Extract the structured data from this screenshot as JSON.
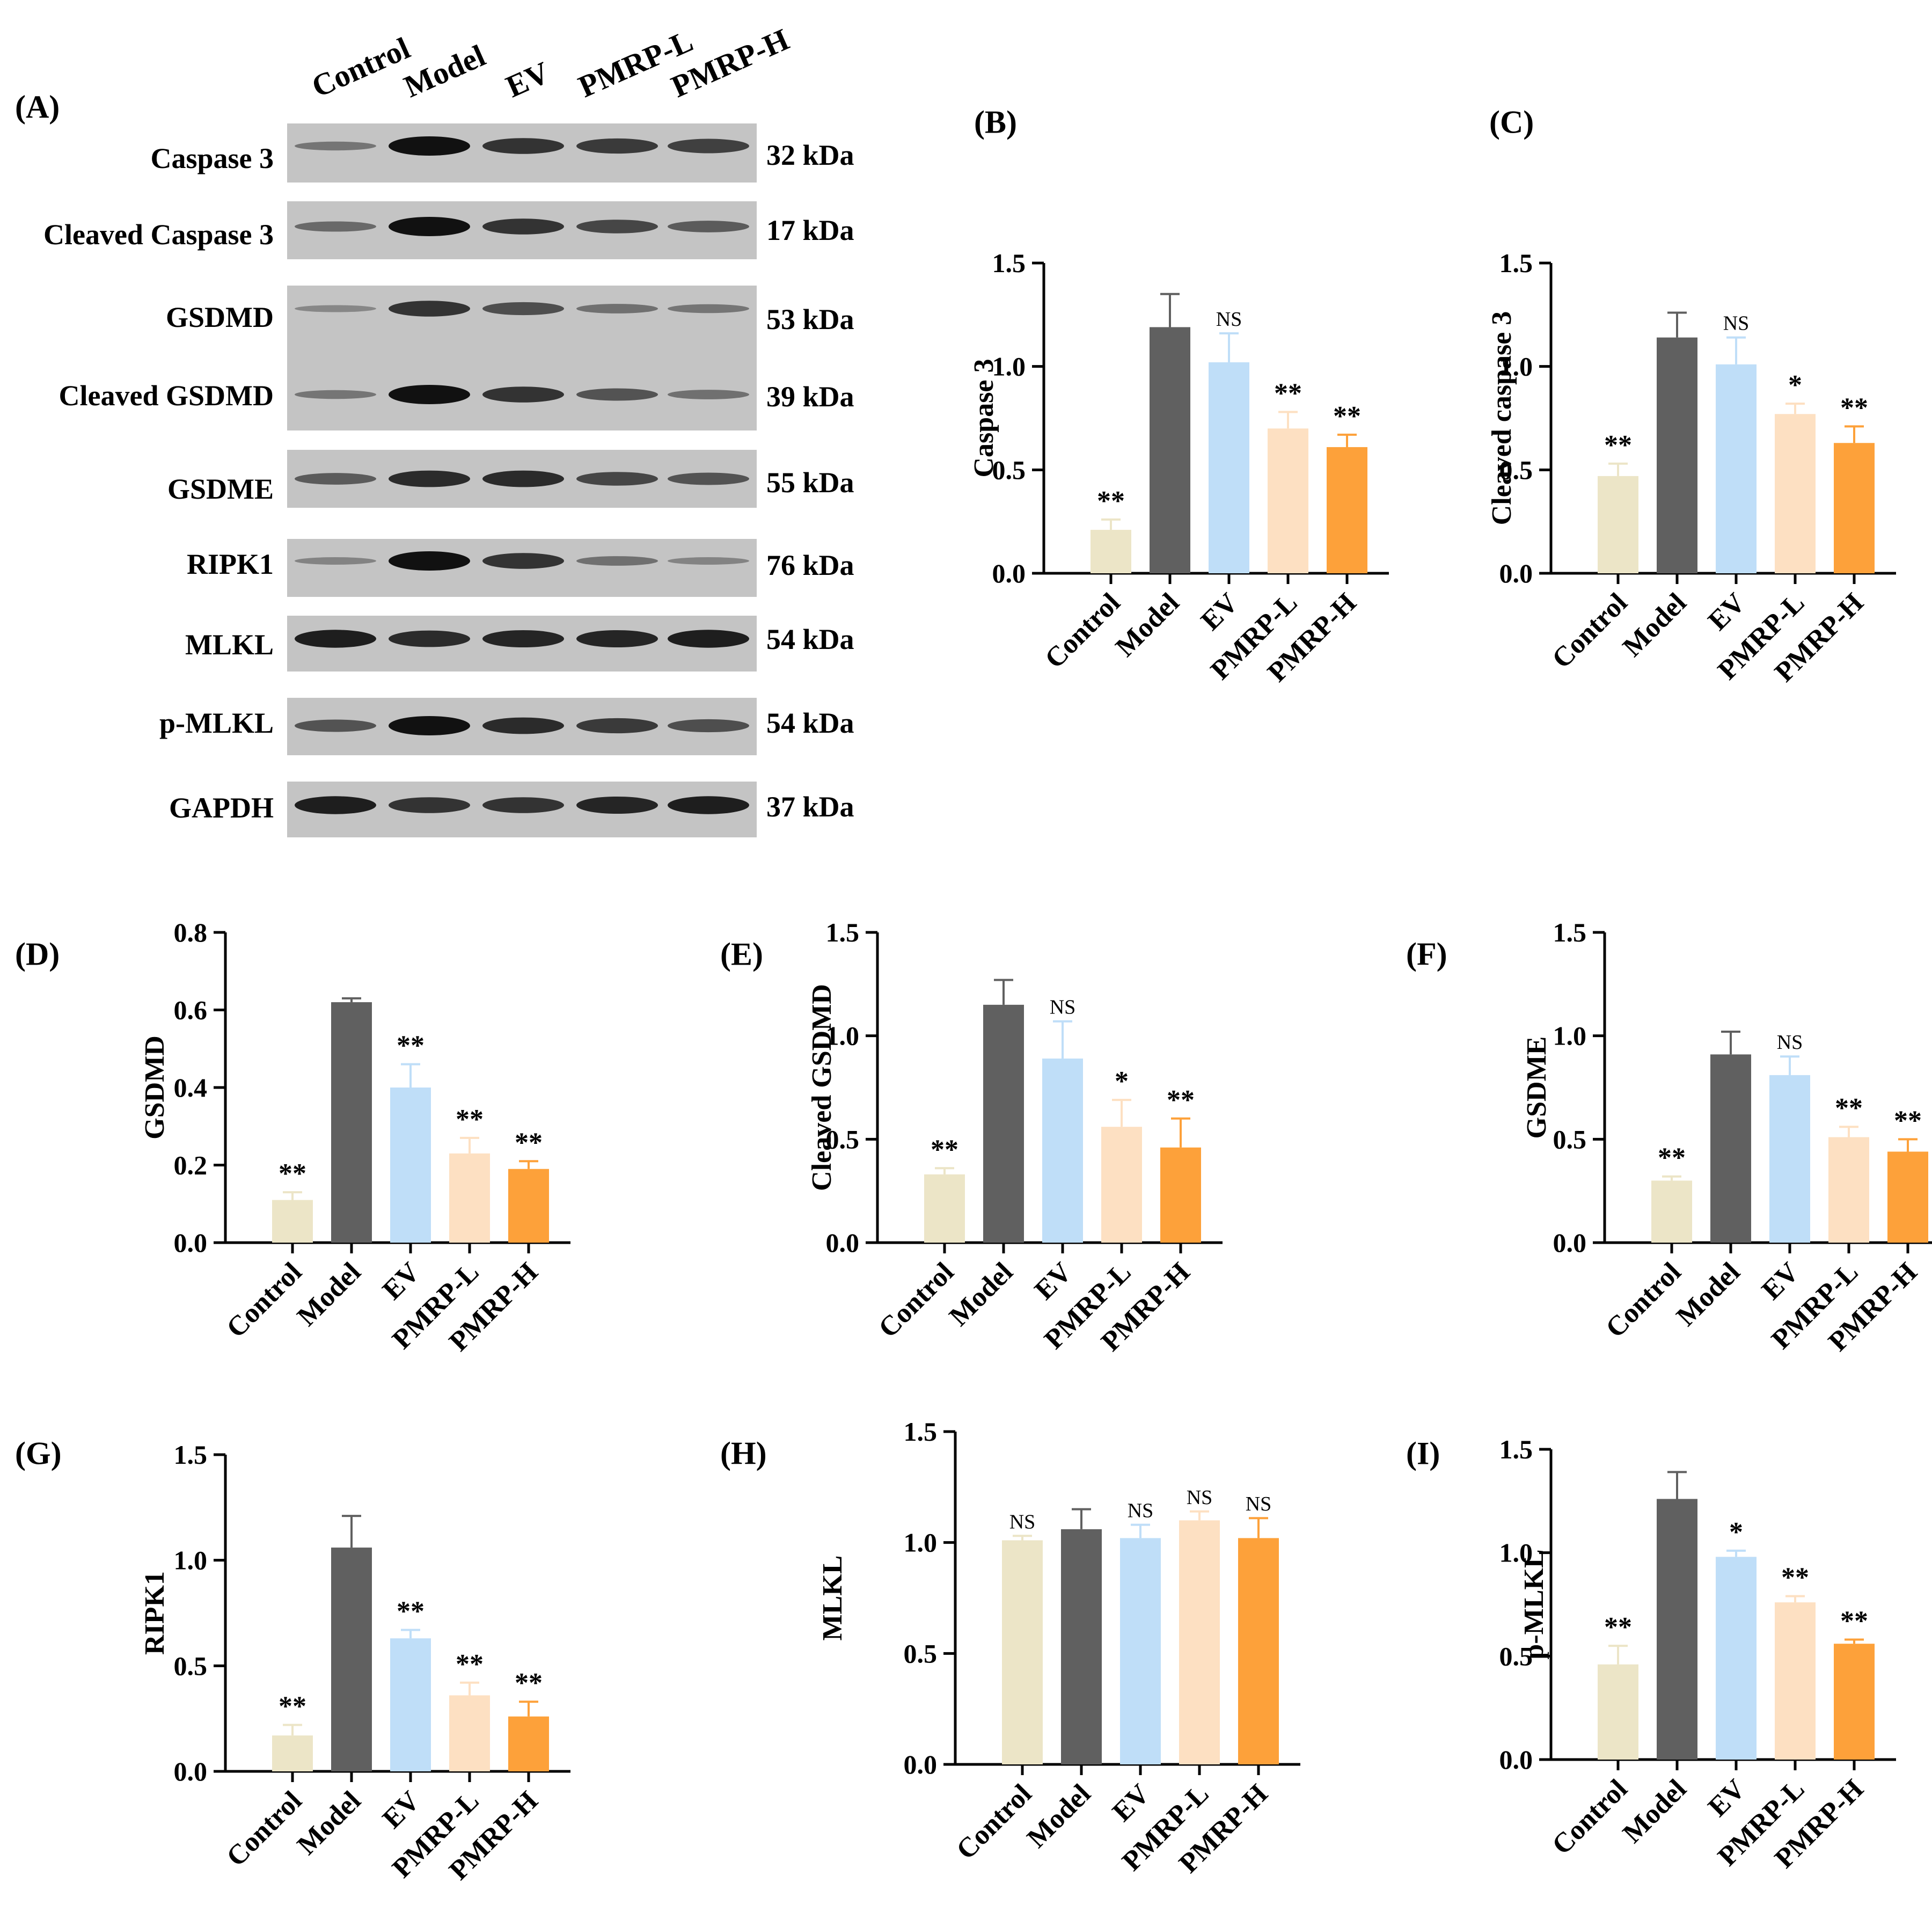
{
  "colors": {
    "Control": "#ece5c7",
    "Model": "#606060",
    "EV": "#bfdef8",
    "PMRP-L": "#fde0c2",
    "PMRP-H": "#fda13a",
    "blot_bg": "#c4c4c4",
    "band": "#111111"
  },
  "blot": {
    "panel": "(A)",
    "lanes": [
      "Control",
      "Model",
      "EV",
      "PMRP-L",
      "PMRP-H"
    ],
    "rows": [
      {
        "label": "Caspase 3",
        "kda": "32 kDa"
      },
      {
        "label": "Cleaved Caspase 3",
        "kda": "17 kDa"
      },
      {
        "label": "GSDMD",
        "kda": "53 kDa"
      },
      {
        "label": "Cleaved GSDMD",
        "kda": "39 kDa"
      },
      {
        "label": "GSDME",
        "kda": "55 kDa"
      },
      {
        "label": "RIPK1",
        "kda": "76 kDa"
      },
      {
        "label": "MLKL",
        "kda": "54 kDa"
      },
      {
        "label": "p-MLKL",
        "kda": "54 kDa"
      },
      {
        "label": "GAPDH",
        "kda": "37 kDa"
      }
    ]
  },
  "chart_data": [
    {
      "panel": "(B)",
      "type": "bar",
      "ylabel": "Caspase 3",
      "categories": [
        "Control",
        "Model",
        "EV",
        "PMRP-L",
        "PMRP-H"
      ],
      "values": [
        0.21,
        1.19,
        1.02,
        0.7,
        0.61
      ],
      "errors": [
        0.05,
        0.16,
        0.14,
        0.08,
        0.06
      ],
      "annotations": [
        "**",
        "",
        "NS",
        "**",
        "**"
      ],
      "ylim": [
        0,
        1.5
      ],
      "yticks": [
        "0.0",
        "0.5",
        "1.0",
        "1.5"
      ]
    },
    {
      "panel": "(C)",
      "type": "bar",
      "ylabel": "Cleaved caspase 3",
      "categories": [
        "Control",
        "Model",
        "EV",
        "PMRP-L",
        "PMRP-H"
      ],
      "values": [
        0.47,
        1.14,
        1.01,
        0.77,
        0.63
      ],
      "errors": [
        0.06,
        0.12,
        0.13,
        0.05,
        0.08
      ],
      "annotations": [
        "**",
        "",
        "NS",
        "*",
        "**"
      ],
      "ylim": [
        0,
        1.5
      ],
      "yticks": [
        "0.0",
        "0.5",
        "1.0",
        "1.5"
      ]
    },
    {
      "panel": "(D)",
      "type": "bar",
      "ylabel": "GSDMD",
      "categories": [
        "Control",
        "Model",
        "EV",
        "PMRP-L",
        "PMRP-H"
      ],
      "values": [
        0.11,
        0.62,
        0.4,
        0.23,
        0.19
      ],
      "errors": [
        0.02,
        0.01,
        0.06,
        0.04,
        0.02
      ],
      "annotations": [
        "**",
        "",
        "**",
        "**",
        "**"
      ],
      "ylim": [
        0,
        0.8
      ],
      "yticks": [
        "0.0",
        "0.2",
        "0.4",
        "0.6",
        "0.8"
      ]
    },
    {
      "panel": "(E)",
      "type": "bar",
      "ylabel": "Cleaved GSDMD",
      "categories": [
        "Control",
        "Model",
        "EV",
        "PMRP-L",
        "PMRP-H"
      ],
      "values": [
        0.33,
        1.15,
        0.89,
        0.56,
        0.46
      ],
      "errors": [
        0.03,
        0.12,
        0.18,
        0.13,
        0.14
      ],
      "annotations": [
        "**",
        "",
        "NS",
        "*",
        "**"
      ],
      "ylim": [
        0,
        1.5
      ],
      "yticks": [
        "0.0",
        "0.5",
        "1.0",
        "1.5"
      ]
    },
    {
      "panel": "(F)",
      "type": "bar",
      "ylabel": "GSDME",
      "categories": [
        "Control",
        "Model",
        "EV",
        "PMRP-L",
        "PMRP-H"
      ],
      "values": [
        0.3,
        0.91,
        0.81,
        0.51,
        0.44
      ],
      "errors": [
        0.02,
        0.11,
        0.09,
        0.05,
        0.06
      ],
      "annotations": [
        "**",
        "",
        "NS",
        "**",
        "**"
      ],
      "ylim": [
        0,
        1.5
      ],
      "yticks": [
        "0.0",
        "0.5",
        "1.0",
        "1.5"
      ]
    },
    {
      "panel": "(G)",
      "type": "bar",
      "ylabel": "RIPK1",
      "categories": [
        "Control",
        "Model",
        "EV",
        "PMRP-L",
        "PMRP-H"
      ],
      "values": [
        0.17,
        1.06,
        0.63,
        0.36,
        0.26
      ],
      "errors": [
        0.05,
        0.15,
        0.04,
        0.06,
        0.07
      ],
      "annotations": [
        "**",
        "",
        "**",
        "**",
        "**"
      ],
      "ylim": [
        0,
        1.5
      ],
      "yticks": [
        "0.0",
        "0.5",
        "1.0",
        "1.5"
      ]
    },
    {
      "panel": "(H)",
      "type": "bar",
      "ylabel": "MLKL",
      "categories": [
        "Control",
        "Model",
        "EV",
        "PMRP-L",
        "PMRP-H"
      ],
      "values": [
        1.01,
        1.06,
        1.02,
        1.1,
        1.02
      ],
      "errors": [
        0.02,
        0.09,
        0.06,
        0.04,
        0.09
      ],
      "annotations": [
        "NS",
        "",
        "NS",
        "NS",
        "NS"
      ],
      "ylim": [
        0,
        1.5
      ],
      "yticks": [
        "0.0",
        "0.5",
        "1.0",
        "1.5"
      ]
    },
    {
      "panel": "(I)",
      "type": "bar",
      "ylabel": "p-MLKL",
      "categories": [
        "Control",
        "Model",
        "EV",
        "PMRP-L",
        "PMRP-H"
      ],
      "values": [
        0.46,
        1.26,
        0.98,
        0.76,
        0.56
      ],
      "errors": [
        0.09,
        0.13,
        0.03,
        0.03,
        0.02
      ],
      "annotations": [
        "**",
        "",
        "*",
        "**",
        "**"
      ],
      "ylim": [
        0,
        1.5
      ],
      "yticks": [
        "0.0",
        "0.5",
        "1.0",
        "1.5"
      ]
    }
  ]
}
